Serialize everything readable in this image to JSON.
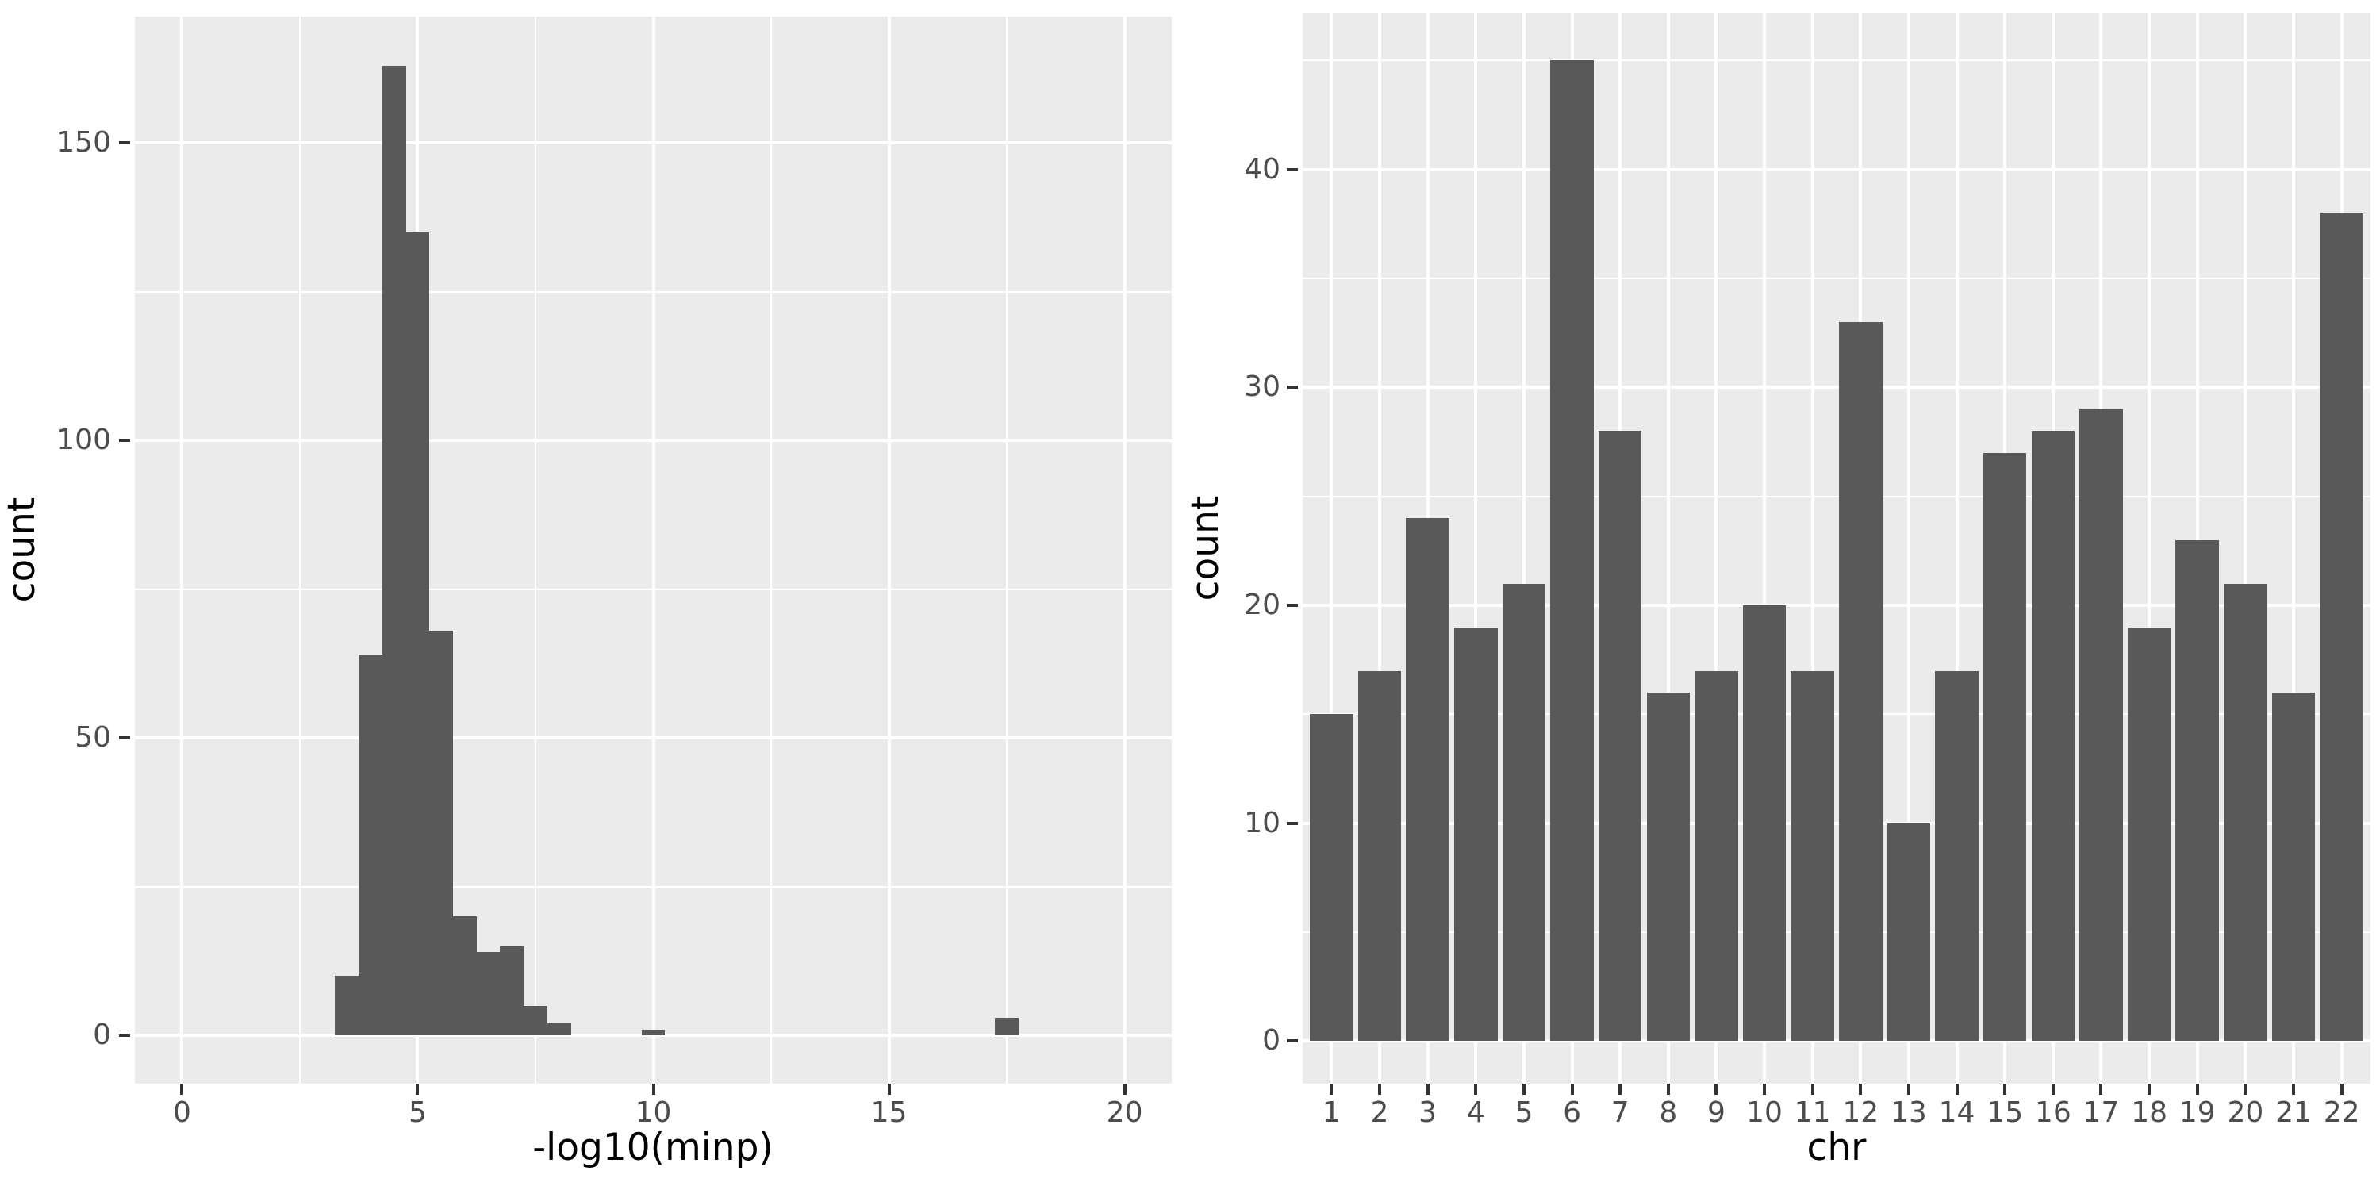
{
  "figure": {
    "colors": {
      "page_bg": "#FFFFFF",
      "panel_bg": "#EBEBEB",
      "grid": "#FFFFFF",
      "bar_fill": "#595959",
      "tick_label": "#4D4D4D",
      "tick_mark": "#333333",
      "axis_title": "#000000"
    }
  },
  "chart_data": [
    {
      "type": "bar",
      "subtype": "histogram",
      "title": "",
      "xlabel": "-log10(minp)",
      "ylabel": "count",
      "x_ticks": [
        0,
        5,
        10,
        15,
        20
      ],
      "y_ticks": [
        0,
        50,
        100,
        150
      ],
      "xlim": [
        -1.0,
        21.0
      ],
      "ylim": [
        -8.1,
        171.2
      ],
      "grid": true,
      "legend": false,
      "bin_width": 0.5,
      "bins": [
        {
          "x0": 3.25,
          "count": 10
        },
        {
          "x0": 3.75,
          "count": 64
        },
        {
          "x0": 4.25,
          "count": 163
        },
        {
          "x0": 4.75,
          "count": 135
        },
        {
          "x0": 5.25,
          "count": 68
        },
        {
          "x0": 5.75,
          "count": 20
        },
        {
          "x0": 6.25,
          "count": 14
        },
        {
          "x0": 6.75,
          "count": 15
        },
        {
          "x0": 7.25,
          "count": 5
        },
        {
          "x0": 7.75,
          "count": 2
        },
        {
          "x0": 9.75,
          "count": 1
        },
        {
          "x0": 17.25,
          "count": 3
        }
      ]
    },
    {
      "type": "bar",
      "subtype": "category-bar",
      "title": "",
      "xlabel": "chr",
      "ylabel": "count",
      "categories": [
        "1",
        "2",
        "3",
        "4",
        "5",
        "6",
        "7",
        "8",
        "9",
        "10",
        "11",
        "12",
        "13",
        "14",
        "15",
        "16",
        "17",
        "18",
        "19",
        "20",
        "21",
        "22"
      ],
      "values": [
        15,
        17,
        24,
        19,
        21,
        45,
        28,
        16,
        17,
        20,
        17,
        33,
        10,
        17,
        27,
        28,
        29,
        19,
        23,
        21,
        16,
        38
      ],
      "y_ticks": [
        0,
        10,
        20,
        30,
        40
      ],
      "xlim": [
        0.4,
        22.6
      ],
      "ylim": [
        -1.95,
        47.2
      ],
      "bar_rel_width": 0.9,
      "grid": true,
      "legend": false
    }
  ]
}
